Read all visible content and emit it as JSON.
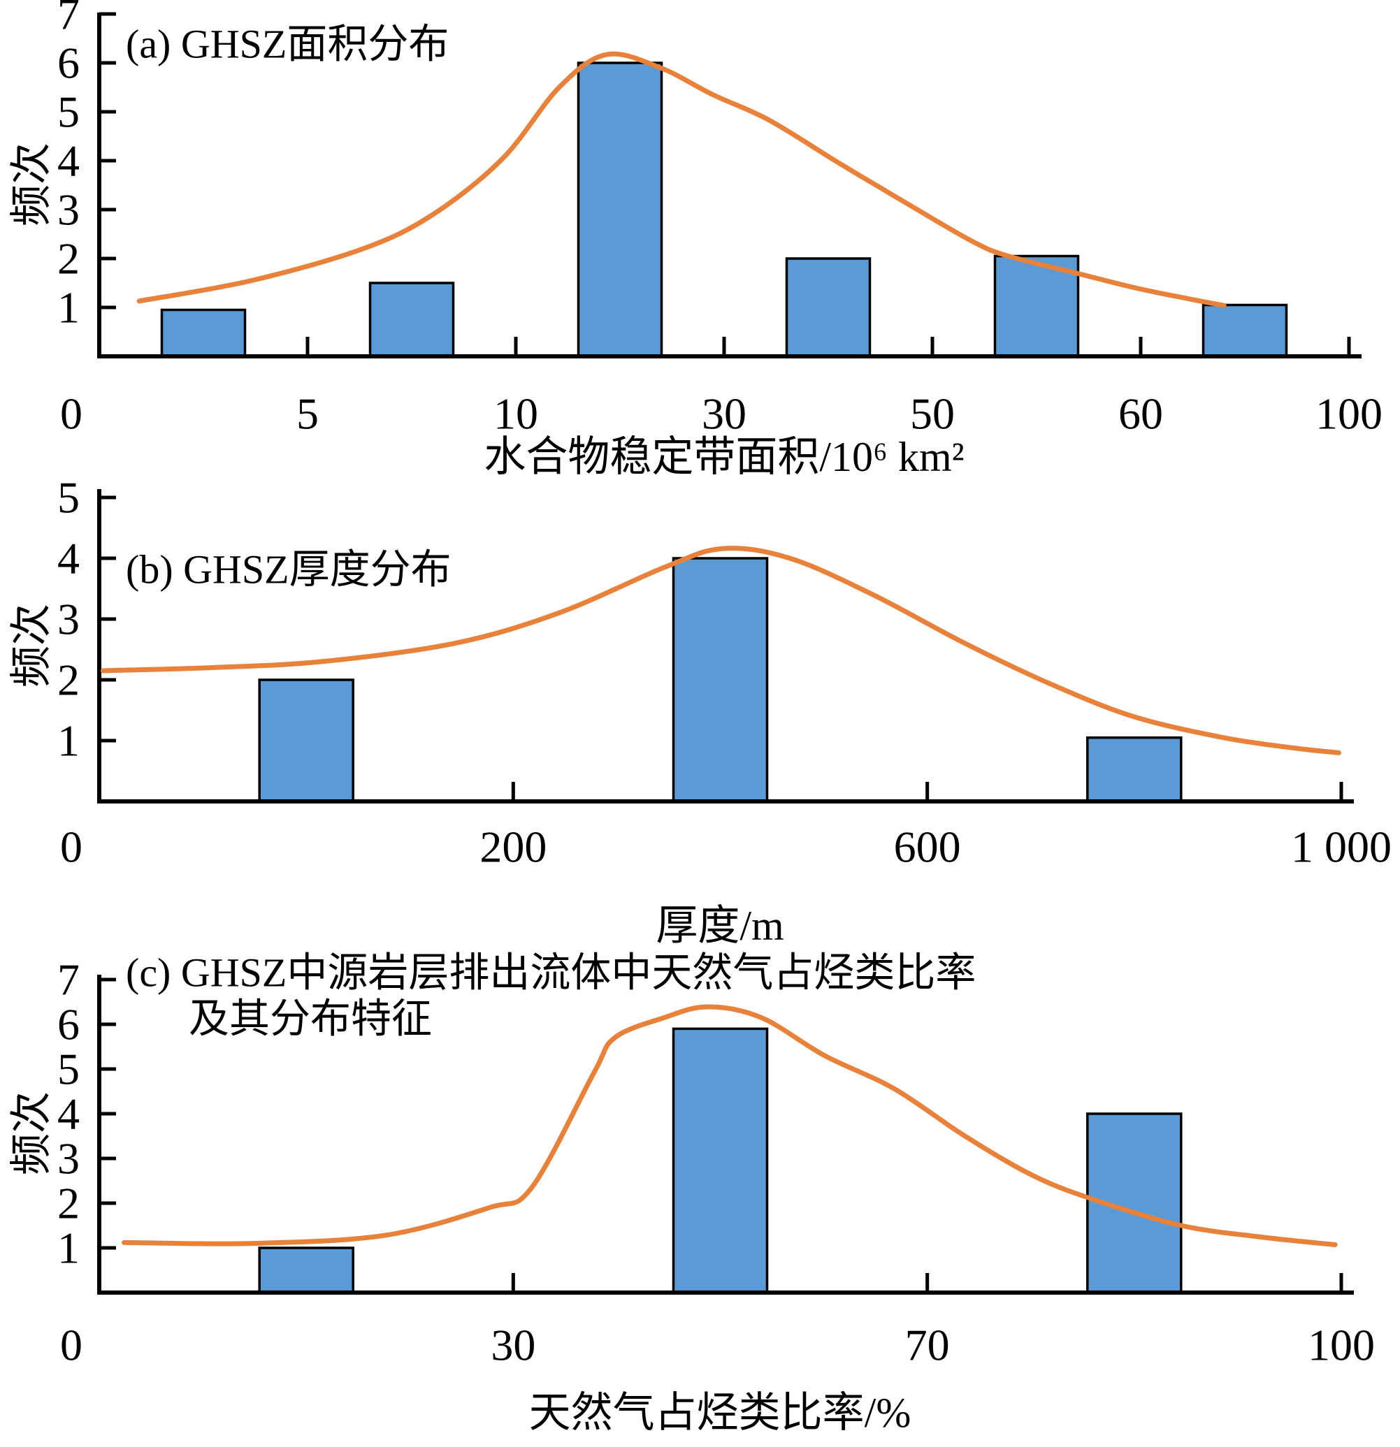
{
  "figure": {
    "background": "#FFFFFF",
    "shared_ylabel": "频次"
  },
  "colors": {
    "bar_fill": "#5B9BD5",
    "bar_stroke": "#000000",
    "curve": "#E8823A",
    "axis": "#000000",
    "text": "#000000"
  },
  "chart_data": [
    {
      "type": "bar",
      "panel": "a",
      "title_lines": [
        "(a) GHSZ面积分布"
      ],
      "ylabel": "频次",
      "xlabel": "水合物稳定带面积/10⁶ km²",
      "x_tick_labels": [
        "0",
        "5",
        "10",
        "30",
        "50",
        "60",
        "100"
      ],
      "y_tick_labels": [
        "1",
        "2",
        "3",
        "4",
        "5",
        "6",
        "7"
      ],
      "ylim": [
        0,
        7
      ],
      "grid": false,
      "legend": null,
      "categories": [
        "0–5",
        "5–10",
        "10–30",
        "30–50",
        "50–60",
        "60–100"
      ],
      "values": [
        0.95,
        1.5,
        6,
        2,
        2.05,
        1.05
      ],
      "curve": {
        "x_fraction": [
          0.032,
          0.122,
          0.211,
          0.267,
          0.323,
          0.368,
          0.406,
          0.449,
          0.491,
          0.536,
          0.592,
          0.648,
          0.698,
          0.726,
          0.782,
          0.829,
          0.871,
          0.9
        ],
        "y": [
          1.13,
          1.55,
          2.2,
          2.9,
          4.05,
          5.5,
          6.17,
          5.9,
          5.35,
          4.83,
          3.95,
          3.1,
          2.36,
          2.06,
          1.7,
          1.4,
          1.18,
          1.04
        ]
      }
    },
    {
      "type": "bar",
      "panel": "b",
      "title_lines": [
        "(b) GHSZ厚度分布"
      ],
      "ylabel": "频次",
      "xlabel": "厚度/m",
      "x_tick_labels": [
        "0",
        "200",
        "600",
        "1 000"
      ],
      "y_tick_labels": [
        "1",
        "2",
        "3",
        "4",
        "5"
      ],
      "ylim": [
        0,
        5
      ],
      "grid": false,
      "legend": null,
      "categories": [
        "0–200",
        "200–600",
        "600–1000"
      ],
      "values": [
        2,
        4,
        1.05
      ],
      "curve": {
        "x_fraction": [
          0.003,
          0.089,
          0.179,
          0.286,
          0.37,
          0.455,
          0.502,
          0.556,
          0.623,
          0.697,
          0.764,
          0.832,
          0.905,
          0.961,
          0.998
        ],
        "y": [
          2.15,
          2.2,
          2.3,
          2.6,
          3.1,
          3.85,
          4.16,
          4.0,
          3.4,
          2.6,
          1.95,
          1.4,
          1.05,
          0.88,
          0.8
        ]
      }
    },
    {
      "type": "bar",
      "panel": "c",
      "title_lines": [
        "(c) GHSZ中源岩层排出流体中天然气占烃类比率",
        "及其分布特征"
      ],
      "ylabel": "频次",
      "xlabel": "天然气占烃类比率/%",
      "x_tick_labels": [
        "0",
        "30",
        "70",
        "100"
      ],
      "y_tick_labels": [
        "1",
        "2",
        "3",
        "4",
        "5",
        "6",
        "7"
      ],
      "ylim": [
        0,
        7
      ],
      "grid": false,
      "legend": null,
      "categories": [
        "0–30",
        "30–70",
        "70–100"
      ],
      "values": [
        1,
        5.9,
        4
      ],
      "curve": {
        "x_fraction": [
          0.02,
          0.123,
          0.23,
          0.314,
          0.348,
          0.398,
          0.415,
          0.455,
          0.49,
          0.533,
          0.584,
          0.64,
          0.697,
          0.753,
          0.804,
          0.871,
          0.933,
          0.995
        ],
        "y": [
          1.12,
          1.1,
          1.28,
          1.9,
          2.34,
          4.9,
          5.7,
          6.15,
          6.39,
          6.15,
          5.3,
          4.56,
          3.5,
          2.6,
          2.05,
          1.5,
          1.25,
          1.07
        ]
      }
    }
  ]
}
